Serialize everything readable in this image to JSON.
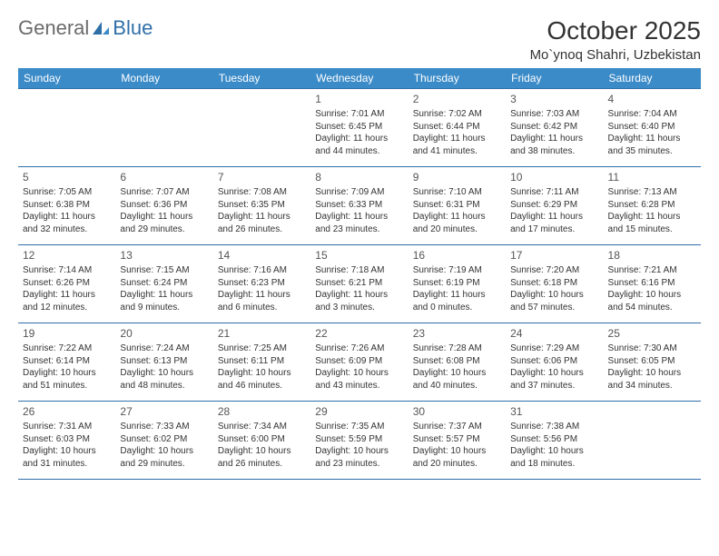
{
  "logo": {
    "word1": "General",
    "word2": "Blue"
  },
  "header": {
    "month": "October 2025",
    "location": "Mo`ynoq Shahri, Uzbekistan"
  },
  "colors": {
    "header_bg": "#3b8bc8",
    "header_text": "#ffffff",
    "border": "#2f6fa8",
    "logo_gray": "#6b6b6b",
    "logo_blue": "#2f6fa8",
    "text": "#333333"
  },
  "weekdays": [
    "Sunday",
    "Monday",
    "Tuesday",
    "Wednesday",
    "Thursday",
    "Friday",
    "Saturday"
  ],
  "weeks": [
    [
      null,
      null,
      null,
      {
        "d": "1",
        "sr": "Sunrise: 7:01 AM",
        "ss": "Sunset: 6:45 PM",
        "dl1": "Daylight: 11 hours",
        "dl2": "and 44 minutes."
      },
      {
        "d": "2",
        "sr": "Sunrise: 7:02 AM",
        "ss": "Sunset: 6:44 PM",
        "dl1": "Daylight: 11 hours",
        "dl2": "and 41 minutes."
      },
      {
        "d": "3",
        "sr": "Sunrise: 7:03 AM",
        "ss": "Sunset: 6:42 PM",
        "dl1": "Daylight: 11 hours",
        "dl2": "and 38 minutes."
      },
      {
        "d": "4",
        "sr": "Sunrise: 7:04 AM",
        "ss": "Sunset: 6:40 PM",
        "dl1": "Daylight: 11 hours",
        "dl2": "and 35 minutes."
      }
    ],
    [
      {
        "d": "5",
        "sr": "Sunrise: 7:05 AM",
        "ss": "Sunset: 6:38 PM",
        "dl1": "Daylight: 11 hours",
        "dl2": "and 32 minutes."
      },
      {
        "d": "6",
        "sr": "Sunrise: 7:07 AM",
        "ss": "Sunset: 6:36 PM",
        "dl1": "Daylight: 11 hours",
        "dl2": "and 29 minutes."
      },
      {
        "d": "7",
        "sr": "Sunrise: 7:08 AM",
        "ss": "Sunset: 6:35 PM",
        "dl1": "Daylight: 11 hours",
        "dl2": "and 26 minutes."
      },
      {
        "d": "8",
        "sr": "Sunrise: 7:09 AM",
        "ss": "Sunset: 6:33 PM",
        "dl1": "Daylight: 11 hours",
        "dl2": "and 23 minutes."
      },
      {
        "d": "9",
        "sr": "Sunrise: 7:10 AM",
        "ss": "Sunset: 6:31 PM",
        "dl1": "Daylight: 11 hours",
        "dl2": "and 20 minutes."
      },
      {
        "d": "10",
        "sr": "Sunrise: 7:11 AM",
        "ss": "Sunset: 6:29 PM",
        "dl1": "Daylight: 11 hours",
        "dl2": "and 17 minutes."
      },
      {
        "d": "11",
        "sr": "Sunrise: 7:13 AM",
        "ss": "Sunset: 6:28 PM",
        "dl1": "Daylight: 11 hours",
        "dl2": "and 15 minutes."
      }
    ],
    [
      {
        "d": "12",
        "sr": "Sunrise: 7:14 AM",
        "ss": "Sunset: 6:26 PM",
        "dl1": "Daylight: 11 hours",
        "dl2": "and 12 minutes."
      },
      {
        "d": "13",
        "sr": "Sunrise: 7:15 AM",
        "ss": "Sunset: 6:24 PM",
        "dl1": "Daylight: 11 hours",
        "dl2": "and 9 minutes."
      },
      {
        "d": "14",
        "sr": "Sunrise: 7:16 AM",
        "ss": "Sunset: 6:23 PM",
        "dl1": "Daylight: 11 hours",
        "dl2": "and 6 minutes."
      },
      {
        "d": "15",
        "sr": "Sunrise: 7:18 AM",
        "ss": "Sunset: 6:21 PM",
        "dl1": "Daylight: 11 hours",
        "dl2": "and 3 minutes."
      },
      {
        "d": "16",
        "sr": "Sunrise: 7:19 AM",
        "ss": "Sunset: 6:19 PM",
        "dl1": "Daylight: 11 hours",
        "dl2": "and 0 minutes."
      },
      {
        "d": "17",
        "sr": "Sunrise: 7:20 AM",
        "ss": "Sunset: 6:18 PM",
        "dl1": "Daylight: 10 hours",
        "dl2": "and 57 minutes."
      },
      {
        "d": "18",
        "sr": "Sunrise: 7:21 AM",
        "ss": "Sunset: 6:16 PM",
        "dl1": "Daylight: 10 hours",
        "dl2": "and 54 minutes."
      }
    ],
    [
      {
        "d": "19",
        "sr": "Sunrise: 7:22 AM",
        "ss": "Sunset: 6:14 PM",
        "dl1": "Daylight: 10 hours",
        "dl2": "and 51 minutes."
      },
      {
        "d": "20",
        "sr": "Sunrise: 7:24 AM",
        "ss": "Sunset: 6:13 PM",
        "dl1": "Daylight: 10 hours",
        "dl2": "and 48 minutes."
      },
      {
        "d": "21",
        "sr": "Sunrise: 7:25 AM",
        "ss": "Sunset: 6:11 PM",
        "dl1": "Daylight: 10 hours",
        "dl2": "and 46 minutes."
      },
      {
        "d": "22",
        "sr": "Sunrise: 7:26 AM",
        "ss": "Sunset: 6:09 PM",
        "dl1": "Daylight: 10 hours",
        "dl2": "and 43 minutes."
      },
      {
        "d": "23",
        "sr": "Sunrise: 7:28 AM",
        "ss": "Sunset: 6:08 PM",
        "dl1": "Daylight: 10 hours",
        "dl2": "and 40 minutes."
      },
      {
        "d": "24",
        "sr": "Sunrise: 7:29 AM",
        "ss": "Sunset: 6:06 PM",
        "dl1": "Daylight: 10 hours",
        "dl2": "and 37 minutes."
      },
      {
        "d": "25",
        "sr": "Sunrise: 7:30 AM",
        "ss": "Sunset: 6:05 PM",
        "dl1": "Daylight: 10 hours",
        "dl2": "and 34 minutes."
      }
    ],
    [
      {
        "d": "26",
        "sr": "Sunrise: 7:31 AM",
        "ss": "Sunset: 6:03 PM",
        "dl1": "Daylight: 10 hours",
        "dl2": "and 31 minutes."
      },
      {
        "d": "27",
        "sr": "Sunrise: 7:33 AM",
        "ss": "Sunset: 6:02 PM",
        "dl1": "Daylight: 10 hours",
        "dl2": "and 29 minutes."
      },
      {
        "d": "28",
        "sr": "Sunrise: 7:34 AM",
        "ss": "Sunset: 6:00 PM",
        "dl1": "Daylight: 10 hours",
        "dl2": "and 26 minutes."
      },
      {
        "d": "29",
        "sr": "Sunrise: 7:35 AM",
        "ss": "Sunset: 5:59 PM",
        "dl1": "Daylight: 10 hours",
        "dl2": "and 23 minutes."
      },
      {
        "d": "30",
        "sr": "Sunrise: 7:37 AM",
        "ss": "Sunset: 5:57 PM",
        "dl1": "Daylight: 10 hours",
        "dl2": "and 20 minutes."
      },
      {
        "d": "31",
        "sr": "Sunrise: 7:38 AM",
        "ss": "Sunset: 5:56 PM",
        "dl1": "Daylight: 10 hours",
        "dl2": "and 18 minutes."
      },
      null
    ]
  ]
}
